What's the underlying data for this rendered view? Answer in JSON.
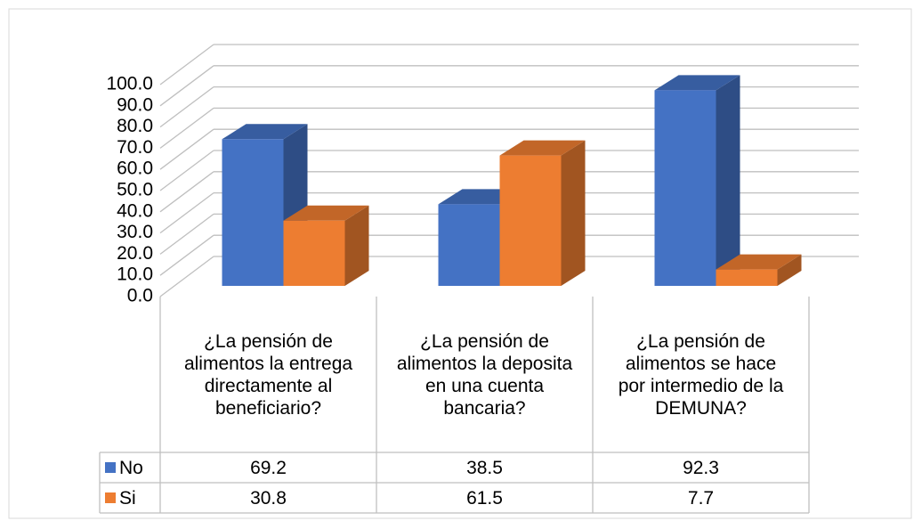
{
  "chart_data": {
    "type": "bar3d",
    "categories": [
      "¿La pensión de alimentos la entrega directamente al beneficiario?",
      "¿La pensión de alimentos la deposita en una cuenta bancaria?",
      "¿La pensión de alimentos se hace por intermedio de la DEMUNA?"
    ],
    "series": [
      {
        "name": "No",
        "color": "#4472c4",
        "values": [
          69.2,
          38.5,
          92.3
        ]
      },
      {
        "name": "Si",
        "color": "#ed7d31",
        "values": [
          30.8,
          61.5,
          7.7
        ]
      }
    ],
    "ylim": [
      0,
      100
    ],
    "yticks": [
      {
        "value": 0,
        "label": "0.0"
      },
      {
        "value": 10,
        "label": "10.0"
      },
      {
        "value": 20,
        "label": "20.0"
      },
      {
        "value": 30,
        "label": "30.0"
      },
      {
        "value": 40,
        "label": "40.0"
      },
      {
        "value": 50,
        "label": "50.0"
      },
      {
        "value": 60,
        "label": "60.0"
      },
      {
        "value": 70,
        "label": "70.0"
      },
      {
        "value": 80,
        "label": "80.0"
      },
      {
        "value": 90,
        "label": "90.0"
      },
      {
        "value": 100,
        "label": "100.0"
      }
    ],
    "grid": true,
    "data_table": true
  }
}
